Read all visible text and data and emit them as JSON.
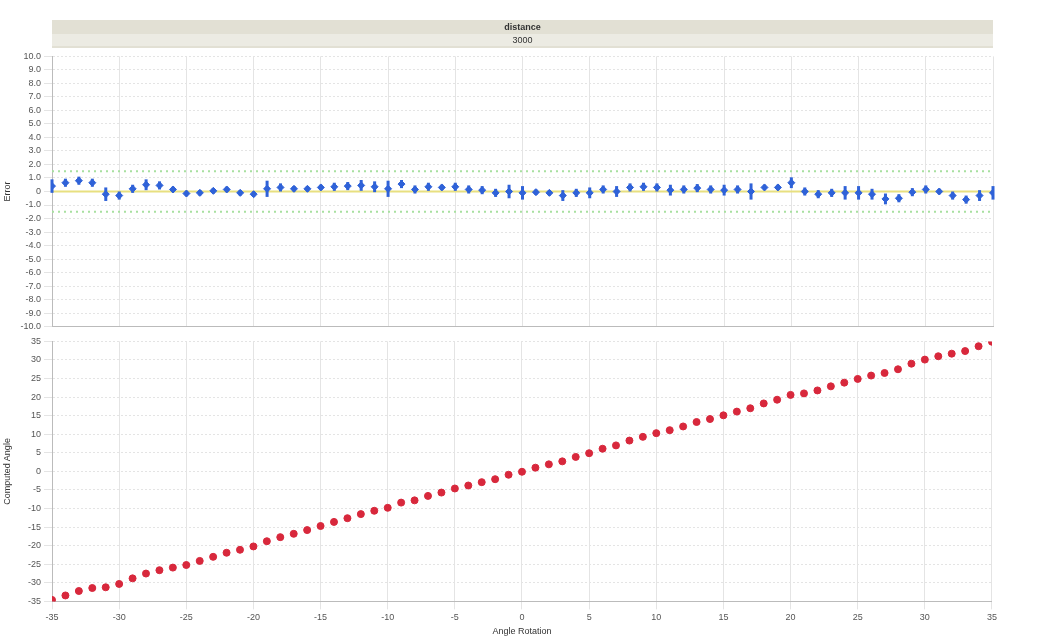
{
  "chart_data": [
    {
      "type": "scatter",
      "title": "distance",
      "subtitle": "3000",
      "ylabel": "Error",
      "tick_labels": "y",
      "grid": true,
      "marker": "diamond",
      "legend": false,
      "xlim": [
        -35,
        35
      ],
      "xticks": [
        -35,
        -30,
        -25,
        -20,
        -15,
        -10,
        -5,
        0,
        5,
        10,
        15,
        20,
        25,
        30,
        35
      ],
      "ylim": [
        -10,
        10
      ],
      "yticks": [
        {
          "value": 10,
          "label": "10.0"
        },
        {
          "value": 9,
          "label": "9.0"
        },
        {
          "value": 8,
          "label": "8.0"
        },
        {
          "value": 7,
          "label": "7.0"
        },
        {
          "value": 6,
          "label": "6.0"
        },
        {
          "value": 5,
          "label": "5.0"
        },
        {
          "value": 4,
          "label": "4.0"
        },
        {
          "value": 3,
          "label": "3.0"
        },
        {
          "value": 2,
          "label": "2.0"
        },
        {
          "value": 1,
          "label": "1.0"
        },
        0,
        {
          "value": -1,
          "label": "-1.0"
        },
        {
          "value": -2,
          "label": "-2.0"
        },
        {
          "value": -3,
          "label": "-3.0"
        },
        {
          "value": -4,
          "label": "-4.0"
        },
        {
          "value": -5,
          "label": "-5.0"
        },
        {
          "value": -6,
          "label": "-6.0"
        },
        {
          "value": -7,
          "label": "-7.0"
        },
        {
          "value": -8,
          "label": "-8.0"
        },
        {
          "value": -9,
          "label": "-9.0"
        },
        {
          "value": -10,
          "label": "-10.0"
        }
      ],
      "ref_lines": [
        {
          "axis": "y",
          "value": 1.5,
          "label": null,
          "color": "#a8e0a0",
          "line_style": "dotted"
        },
        {
          "axis": "y",
          "value": -1.5,
          "label": null,
          "color": "#a8e0a0",
          "line_style": "dotted"
        },
        {
          "axis": "y",
          "value": 0,
          "label": null,
          "color": "#e8e080",
          "line_style": "solid"
        }
      ],
      "x": [
        -35,
        -34,
        -33,
        -32,
        -31,
        -30,
        -29,
        -28,
        -27,
        -26,
        -25,
        -24,
        -23,
        -22,
        -21,
        -20,
        -19,
        -18,
        -17,
        -16,
        -15,
        -14,
        -13,
        -12,
        -11,
        -10,
        -9,
        -8,
        -7,
        -6,
        -5,
        -4,
        -3,
        -2,
        -1,
        0,
        1,
        2,
        3,
        4,
        5,
        6,
        7,
        8,
        9,
        10,
        11,
        12,
        13,
        14,
        15,
        16,
        17,
        18,
        19,
        20,
        21,
        22,
        23,
        24,
        25,
        26,
        27,
        28,
        29,
        30,
        31,
        32,
        33,
        34,
        35
      ],
      "series": [
        {
          "color": "#2f62d8",
          "values": [
            0.4,
            0.65,
            0.8,
            0.65,
            -0.2,
            -0.3,
            0.2,
            0.5,
            0.45,
            0.15,
            -0.15,
            -0.1,
            0.05,
            0.15,
            -0.1,
            -0.2,
            0.2,
            0.3,
            0.2,
            0.2,
            0.3,
            0.35,
            0.4,
            0.45,
            0.35,
            0.2,
            0.55,
            0.15,
            0.35,
            0.3,
            0.35,
            0.15,
            0.1,
            -0.1,
            0,
            -0.1,
            -0.05,
            -0.1,
            -0.3,
            -0.1,
            -0.1,
            0.15,
            0,
            0.3,
            0.35,
            0.3,
            0.1,
            0.15,
            0.25,
            0.15,
            0.1,
            0.15,
            0,
            0.3,
            0.3,
            0.65,
            0,
            -0.2,
            -0.1,
            -0.1,
            -0.1,
            -0.2,
            -0.55,
            -0.5,
            -0.05,
            0.15,
            0,
            -0.3,
            -0.6,
            -0.3,
            -0.1
          ],
          "errors": [
            0.5,
            0.3,
            0.3,
            0.3,
            0.5,
            0.3,
            0.3,
            0.4,
            0.3,
            0.2,
            0.2,
            0.2,
            0.2,
            0.2,
            0.2,
            0.2,
            0.6,
            0.3,
            0.2,
            0.2,
            0.2,
            0.3,
            0.3,
            0.4,
            0.4,
            0.6,
            0.3,
            0.3,
            0.3,
            0.2,
            0.3,
            0.3,
            0.3,
            0.3,
            0.5,
            0.5,
            0.2,
            0.2,
            0.4,
            0.3,
            0.4,
            0.3,
            0.4,
            0.3,
            0.3,
            0.3,
            0.4,
            0.3,
            0.3,
            0.3,
            0.4,
            0.3,
            0.6,
            0.2,
            0.2,
            0.4,
            0.3,
            0.3,
            0.3,
            0.5,
            0.5,
            0.4,
            0.4,
            0.3,
            0.3,
            0.3,
            0.2,
            0.3,
            0.3,
            0.4,
            0.5
          ]
        }
      ]
    },
    {
      "type": "scatter",
      "xlabel": "Angle Rotation",
      "ylabel": "Computed Angle",
      "grid": true,
      "marker": "circle",
      "legend": false,
      "xlim": [
        -35,
        35
      ],
      "xticks": [
        -35,
        -30,
        -25,
        -20,
        -15,
        -10,
        -5,
        0,
        5,
        10,
        15,
        20,
        25,
        30,
        35
      ],
      "ylim": [
        -35,
        35
      ],
      "yticks": [
        -35,
        -30,
        -25,
        -20,
        -15,
        -10,
        -5,
        0,
        5,
        10,
        15,
        20,
        25,
        30,
        35
      ],
      "x": [
        -35,
        -34,
        -33,
        -32,
        -31,
        -30,
        -29,
        -28,
        -27,
        -26,
        -25,
        -24,
        -23,
        -22,
        -21,
        -20,
        -19,
        -18,
        -17,
        -16,
        -15,
        -14,
        -13,
        -12,
        -11,
        -10,
        -9,
        -8,
        -7,
        -6,
        -5,
        -4,
        -3,
        -2,
        -1,
        0,
        1,
        2,
        3,
        4,
        5,
        6,
        7,
        8,
        9,
        10,
        11,
        12,
        13,
        14,
        15,
        16,
        17,
        18,
        19,
        20,
        21,
        22,
        23,
        24,
        25,
        26,
        27,
        28,
        29,
        30,
        31,
        32,
        33,
        34,
        35
      ],
      "series": [
        {
          "color": "#d8283c",
          "values": [
            -34.6,
            -33.4,
            -32.2,
            -31.4,
            -31.2,
            -30.3,
            -28.8,
            -27.5,
            -26.6,
            -25.9,
            -25.2,
            -24.1,
            -23,
            -21.9,
            -21.1,
            -20.2,
            -18.8,
            -17.7,
            -16.8,
            -15.8,
            -14.7,
            -13.6,
            -12.6,
            -11.5,
            -10.6,
            -9.8,
            -8.4,
            -7.8,
            -6.6,
            -5.7,
            -4.6,
            -3.8,
            -2.9,
            -2.1,
            -0.9,
            -0.1,
            1,
            1.9,
            2.7,
            3.9,
            4.9,
            6.1,
            7,
            8.3,
            9.3,
            10.3,
            11.1,
            12.1,
            13.3,
            14.1,
            15.1,
            16.1,
            17,
            18.3,
            19.3,
            20.6,
            21,
            21.8,
            22.9,
            23.9,
            24.9,
            25.8,
            26.5,
            27.5,
            29,
            30.1,
            31,
            31.7,
            32.4,
            33.7,
            34.9
          ]
        }
      ]
    }
  ]
}
